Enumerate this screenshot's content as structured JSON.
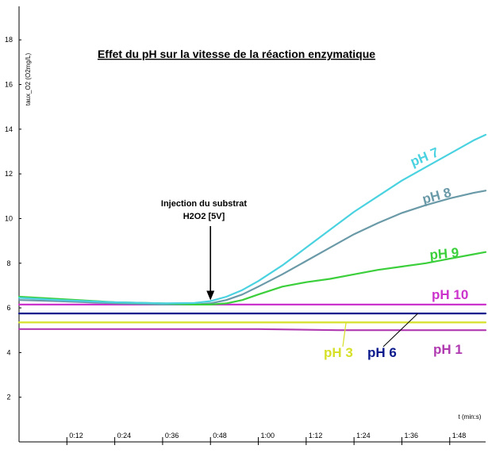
{
  "chart_data": {
    "type": "line",
    "title": "Effet du pH sur la vitesse de la réaction enzymatique",
    "ylabel": "taux_O2 (O2mg/L)",
    "xlabel": "t (min:s)",
    "ylim": [
      0,
      19.5
    ],
    "xlim": [
      0,
      117
    ],
    "y_ticks": [
      2,
      4,
      6,
      8,
      10,
      12,
      14,
      16,
      18
    ],
    "x_ticks": [
      {
        "value": 12,
        "label": "0:12"
      },
      {
        "value": 24,
        "label": "0:24"
      },
      {
        "value": 36,
        "label": "0:36"
      },
      {
        "value": 48,
        "label": "0:48"
      },
      {
        "value": 60,
        "label": "1:00"
      },
      {
        "value": 72,
        "label": "1:12"
      },
      {
        "value": 84,
        "label": "1:24"
      },
      {
        "value": 96,
        "label": "1:36"
      },
      {
        "value": 108,
        "label": "1:48"
      }
    ],
    "grid": false,
    "annotation": {
      "lines": [
        "Injection du substrat",
        "H2O2 [5V]"
      ],
      "x": 48,
      "y": 6.2
    },
    "series": [
      {
        "name": "pH 7",
        "color": "#4ad2e0",
        "x": [
          0,
          10,
          24,
          36,
          44,
          48,
          52,
          56,
          60,
          66,
          72,
          78,
          84,
          90,
          96,
          102,
          108,
          114,
          117
        ],
        "y": [
          6.45,
          6.35,
          6.25,
          6.2,
          6.22,
          6.3,
          6.5,
          6.8,
          7.2,
          7.9,
          8.7,
          9.5,
          10.3,
          11.0,
          11.7,
          12.3,
          12.9,
          13.5,
          13.75
        ]
      },
      {
        "name": "pH 8",
        "color": "#6a9aa8",
        "x": [
          0,
          10,
          24,
          36,
          44,
          48,
          52,
          56,
          60,
          66,
          72,
          78,
          84,
          90,
          96,
          102,
          108,
          114,
          117
        ],
        "y": [
          6.35,
          6.3,
          6.2,
          6.15,
          6.15,
          6.2,
          6.35,
          6.6,
          6.95,
          7.5,
          8.1,
          8.7,
          9.3,
          9.8,
          10.25,
          10.6,
          10.9,
          11.15,
          11.25
        ]
      },
      {
        "name": "pH 9",
        "color": "#3ccf3c",
        "x": [
          0,
          10,
          24,
          36,
          44,
          48,
          52,
          56,
          60,
          66,
          72,
          78,
          84,
          90,
          96,
          102,
          108,
          114,
          117
        ],
        "y": [
          6.5,
          6.4,
          6.25,
          6.2,
          6.15,
          6.15,
          6.2,
          6.35,
          6.6,
          6.95,
          7.15,
          7.3,
          7.5,
          7.7,
          7.85,
          8.0,
          8.2,
          8.4,
          8.5
        ]
      },
      {
        "name": "pH 10",
        "color": "#cc33cc",
        "x": [
          0,
          20,
          40,
          60,
          80,
          100,
          117
        ],
        "y": [
          6.15,
          6.15,
          6.15,
          6.15,
          6.15,
          6.15,
          6.15
        ]
      },
      {
        "name": "pH 6",
        "color": "#0a1a8c",
        "x": [
          0,
          20,
          40,
          60,
          80,
          100,
          117
        ],
        "y": [
          5.75,
          5.75,
          5.75,
          5.75,
          5.75,
          5.75,
          5.75
        ]
      },
      {
        "name": "pH 3",
        "color": "#d6e028",
        "x": [
          0,
          20,
          40,
          60,
          80,
          100,
          117
        ],
        "y": [
          5.35,
          5.35,
          5.35,
          5.35,
          5.35,
          5.35,
          5.35
        ]
      },
      {
        "name": "pH 1",
        "color": "#b03ab0",
        "x": [
          0,
          20,
          40,
          60,
          80,
          100,
          117
        ],
        "y": [
          5.05,
          5.05,
          5.05,
          5.05,
          5.0,
          5.0,
          5.0
        ]
      }
    ]
  }
}
